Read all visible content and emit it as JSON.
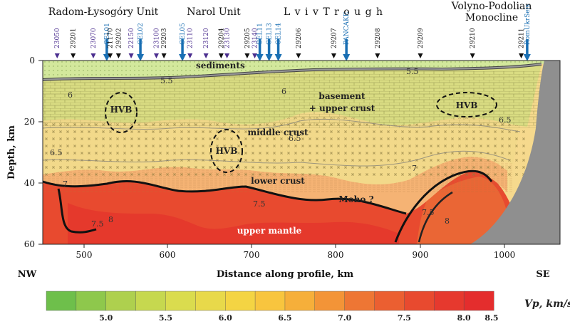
{
  "units": [
    {
      "label": "Radom-Łysogóry Unit"
    },
    {
      "label": "Narol Unit"
    },
    {
      "label": "L v i v   T r o u g h"
    },
    {
      "label": "Volyno-Podolian"
    },
    {
      "label": "Monocline"
    }
  ],
  "stations": [
    {
      "label": "23050",
      "km": 468,
      "kind": "purple"
    },
    {
      "label": "29201",
      "km": 487,
      "kind": "black"
    },
    {
      "label": "23070",
      "km": 511,
      "kind": "purple"
    },
    {
      "label": "CEL01",
      "km": 527,
      "kind": "blue"
    },
    {
      "label": "21170",
      "km": 531,
      "kind": "black"
    },
    {
      "label": "29202",
      "km": 541,
      "kind": "black"
    },
    {
      "label": "22150",
      "km": 556,
      "kind": "purple"
    },
    {
      "label": "CEL02",
      "km": 567,
      "kind": "blue"
    },
    {
      "label": "23100",
      "km": 586,
      "kind": "purple"
    },
    {
      "label": "29203",
      "km": 595,
      "kind": "black"
    },
    {
      "label": "CEL05",
      "km": 617,
      "kind": "blue"
    },
    {
      "label": "23110",
      "km": 626,
      "kind": "purple"
    },
    {
      "label": "23120",
      "km": 645,
      "kind": "purple"
    },
    {
      "label": "29204",
      "km": 663,
      "kind": "black"
    },
    {
      "label": "23130",
      "km": 670,
      "kind": "purple"
    },
    {
      "label": "29205",
      "km": 694,
      "kind": "black"
    },
    {
      "label": "23140",
      "km": 703,
      "kind": "purple"
    },
    {
      "label": "CEL11",
      "km": 709,
      "kind": "blue"
    },
    {
      "label": "CEL13",
      "km": 720,
      "kind": "blue"
    },
    {
      "label": "CEL14",
      "km": 731,
      "kind": "blue"
    },
    {
      "label": "29206",
      "km": 755,
      "kind": "black"
    },
    {
      "label": "29207",
      "km": 797,
      "kind": "black"
    },
    {
      "label": "PANCAKE",
      "km": 812,
      "kind": "blue"
    },
    {
      "label": "29208",
      "km": 849,
      "kind": "black"
    },
    {
      "label": "29209",
      "km": 900,
      "kind": "black"
    },
    {
      "label": "29210",
      "km": 962,
      "kind": "black"
    },
    {
      "label": "29211",
      "km": 1020,
      "kind": "black"
    },
    {
      "label": "RomUkrSeis",
      "km": 1027,
      "kind": "blue"
    }
  ],
  "axes": {
    "x_title": "Distance along profile, km",
    "y_title": "Depth, km",
    "x_ticks": [
      "500",
      "600",
      "700",
      "800",
      "900",
      "1000"
    ],
    "y_ticks": [
      "0",
      "20",
      "40",
      "60"
    ],
    "left_end": "NW",
    "right_end": "SE"
  },
  "zones": {
    "sediments": "sediments",
    "basement_1": "basement",
    "basement_2": "+ upper crust",
    "middle": "middle crust",
    "lower": "lower crust",
    "moho": "Moho ?",
    "mantle": "upper mantle",
    "hvb_1": "HVB",
    "hvb_2": "HVB",
    "hvb_3": "HVB"
  },
  "contour_labels": [
    "5.5",
    "5.5",
    "6",
    "6",
    "6.5",
    "6.5",
    "6.5",
    "7",
    "7",
    "7.5",
    "7.5",
    "8",
    "8",
    "7.5"
  ],
  "colorbar": {
    "title": "Vp, km/s",
    "ticks": [
      "5.0",
      "5.5",
      "6.0",
      "6.5",
      "7.0",
      "7.5",
      "8.0",
      "8.5"
    ],
    "colors": [
      "#6ebf4b",
      "#8ec84c",
      "#aed04e",
      "#c6d84f",
      "#dadc4e",
      "#e8d94a",
      "#f4d443",
      "#f8c53e",
      "#f6af3a",
      "#f39437",
      "#ee7634",
      "#eb5f31",
      "#e84a2f",
      "#e6392e",
      "#e42d2d"
    ]
  },
  "colors": {
    "sediments": "#d2e89a",
    "basement": "#d8dc7e",
    "middle": "#f1df8e",
    "lower": "#f3c47c",
    "mantle_top": "#ea6a35",
    "mantle": "#e4452c",
    "terrain": "#8f8f8f",
    "blue": "#1a6fb3",
    "purple": "#4b2e8f"
  }
}
